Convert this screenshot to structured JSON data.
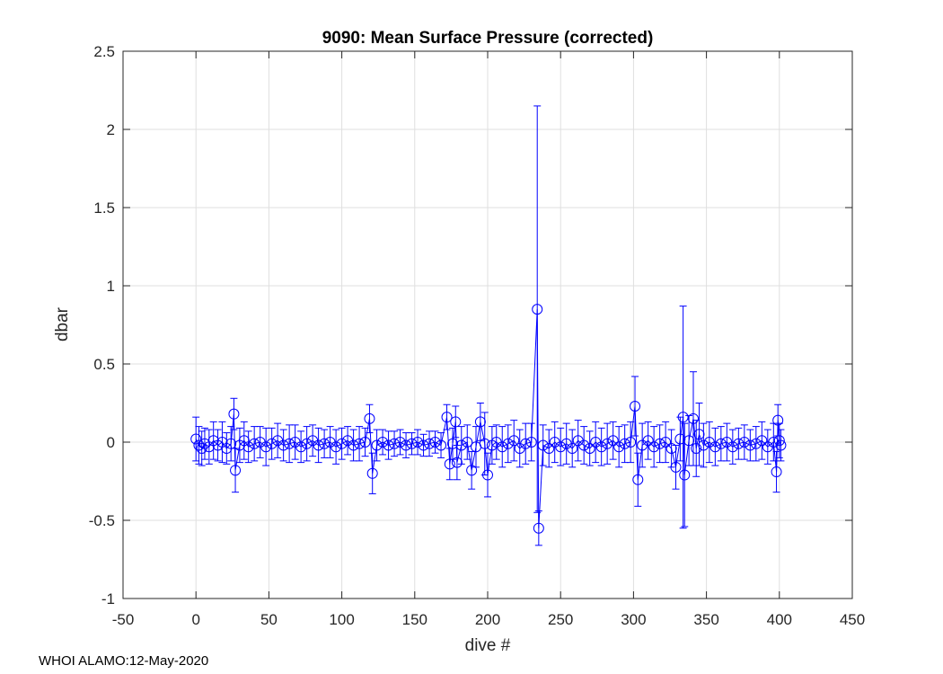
{
  "chart_data": {
    "type": "scatter",
    "title": "9090: Mean Surface Pressure (corrected)",
    "xlabel": "dive #",
    "ylabel": "dbar",
    "xlim": [
      -50,
      450
    ],
    "ylim": [
      -1,
      2.5
    ],
    "xticks": [
      -50,
      0,
      50,
      100,
      150,
      200,
      250,
      300,
      350,
      400,
      450
    ],
    "yticks": [
      -1,
      -0.5,
      0,
      0.5,
      1,
      1.5,
      2,
      2.5
    ],
    "xtick_labels": [
      "-50",
      "0",
      "50",
      "100",
      "150",
      "200",
      "250",
      "300",
      "350",
      "400",
      "450"
    ],
    "ytick_labels": [
      "-1",
      "-0.5",
      "0",
      "0.5",
      "1",
      "1.5",
      "2",
      "2.5"
    ],
    "grid": true,
    "series_color": "#0000ff",
    "marker": "circle",
    "errorbars": true,
    "series": [
      {
        "name": "mean surface pressure",
        "points": [
          {
            "x": 0,
            "y": 0.02,
            "err": 0.14
          },
          {
            "x": 2,
            "y": -0.02,
            "err": 0.12
          },
          {
            "x": 4,
            "y": -0.04,
            "err": 0.11
          },
          {
            "x": 6,
            "y": -0.01,
            "err": 0.1
          },
          {
            "x": 9,
            "y": -0.03,
            "err": 0.11
          },
          {
            "x": 12,
            "y": 0.01,
            "err": 0.12
          },
          {
            "x": 15,
            "y": -0.02,
            "err": 0.1
          },
          {
            "x": 18,
            "y": 0.0,
            "err": 0.13
          },
          {
            "x": 21,
            "y": -0.04,
            "err": 0.1
          },
          {
            "x": 24,
            "y": -0.01,
            "err": 0.11
          },
          {
            "x": 26,
            "y": 0.18,
            "err": 0.1
          },
          {
            "x": 27,
            "y": -0.18,
            "err": 0.14
          },
          {
            "x": 30,
            "y": -0.02,
            "err": 0.11
          },
          {
            "x": 33,
            "y": 0.01,
            "err": 0.12
          },
          {
            "x": 36,
            "y": -0.03,
            "err": 0.1
          },
          {
            "x": 40,
            "y": -0.01,
            "err": 0.11
          },
          {
            "x": 44,
            "y": 0.0,
            "err": 0.1
          },
          {
            "x": 48,
            "y": -0.03,
            "err": 0.12
          },
          {
            "x": 52,
            "y": -0.01,
            "err": 0.1
          },
          {
            "x": 56,
            "y": 0.01,
            "err": 0.11
          },
          {
            "x": 60,
            "y": -0.02,
            "err": 0.1
          },
          {
            "x": 64,
            "y": -0.01,
            "err": 0.12
          },
          {
            "x": 68,
            "y": 0.0,
            "err": 0.11
          },
          {
            "x": 72,
            "y": -0.03,
            "err": 0.1
          },
          {
            "x": 76,
            "y": -0.01,
            "err": 0.11
          },
          {
            "x": 80,
            "y": 0.01,
            "err": 0.1
          },
          {
            "x": 84,
            "y": -0.02,
            "err": 0.11
          },
          {
            "x": 88,
            "y": -0.01,
            "err": 0.09
          },
          {
            "x": 92,
            "y": 0.0,
            "err": 0.1
          },
          {
            "x": 96,
            "y": -0.03,
            "err": 0.11
          },
          {
            "x": 100,
            "y": -0.01,
            "err": 0.1
          },
          {
            "x": 104,
            "y": 0.01,
            "err": 0.09
          },
          {
            "x": 108,
            "y": -0.02,
            "err": 0.1
          },
          {
            "x": 112,
            "y": -0.01,
            "err": 0.11
          },
          {
            "x": 116,
            "y": 0.0,
            "err": 0.09
          },
          {
            "x": 119,
            "y": 0.15,
            "err": 0.09
          },
          {
            "x": 121,
            "y": -0.2,
            "err": 0.13
          },
          {
            "x": 124,
            "y": -0.02,
            "err": 0.1
          },
          {
            "x": 128,
            "y": 0.0,
            "err": 0.08
          },
          {
            "x": 132,
            "y": -0.02,
            "err": 0.09
          },
          {
            "x": 136,
            "y": -0.01,
            "err": 0.08
          },
          {
            "x": 140,
            "y": 0.0,
            "err": 0.08
          },
          {
            "x": 144,
            "y": -0.02,
            "err": 0.08
          },
          {
            "x": 148,
            "y": -0.01,
            "err": 0.07
          },
          {
            "x": 152,
            "y": 0.0,
            "err": 0.08
          },
          {
            "x": 156,
            "y": -0.02,
            "err": 0.07
          },
          {
            "x": 160,
            "y": -0.01,
            "err": 0.08
          },
          {
            "x": 164,
            "y": 0.0,
            "err": 0.07
          },
          {
            "x": 168,
            "y": -0.02,
            "err": 0.08
          },
          {
            "x": 172,
            "y": 0.16,
            "err": 0.08
          },
          {
            "x": 174,
            "y": -0.14,
            "err": 0.1
          },
          {
            "x": 176,
            "y": -0.01,
            "err": 0.1
          },
          {
            "x": 178,
            "y": 0.13,
            "err": 0.1
          },
          {
            "x": 179,
            "y": -0.13,
            "err": 0.11
          },
          {
            "x": 182,
            "y": -0.02,
            "err": 0.12
          },
          {
            "x": 186,
            "y": 0.0,
            "err": 0.11
          },
          {
            "x": 189,
            "y": -0.18,
            "err": 0.12
          },
          {
            "x": 192,
            "y": -0.03,
            "err": 0.13
          },
          {
            "x": 195,
            "y": 0.13,
            "err": 0.12
          },
          {
            "x": 198,
            "y": -0.01,
            "err": 0.2
          },
          {
            "x": 200,
            "y": -0.21,
            "err": 0.14
          },
          {
            "x": 203,
            "y": -0.02,
            "err": 0.12
          },
          {
            "x": 206,
            "y": 0.0,
            "err": 0.11
          },
          {
            "x": 210,
            "y": -0.03,
            "err": 0.13
          },
          {
            "x": 214,
            "y": -0.01,
            "err": 0.12
          },
          {
            "x": 218,
            "y": 0.01,
            "err": 0.13
          },
          {
            "x": 222,
            "y": -0.04,
            "err": 0.12
          },
          {
            "x": 226,
            "y": -0.01,
            "err": 0.13
          },
          {
            "x": 230,
            "y": 0.0,
            "err": 0.12
          },
          {
            "x": 234,
            "y": 0.85,
            "err": 1.3
          },
          {
            "x": 235,
            "y": -0.55,
            "err": 0.11
          },
          {
            "x": 238,
            "y": -0.02,
            "err": 0.13
          },
          {
            "x": 242,
            "y": -0.04,
            "err": 0.12
          },
          {
            "x": 246,
            "y": 0.0,
            "err": 0.13
          },
          {
            "x": 250,
            "y": -0.03,
            "err": 0.12
          },
          {
            "x": 254,
            "y": -0.01,
            "err": 0.13
          },
          {
            "x": 258,
            "y": -0.04,
            "err": 0.12
          },
          {
            "x": 262,
            "y": 0.01,
            "err": 0.13
          },
          {
            "x": 266,
            "y": -0.02,
            "err": 0.12
          },
          {
            "x": 270,
            "y": -0.04,
            "err": 0.11
          },
          {
            "x": 274,
            "y": 0.0,
            "err": 0.13
          },
          {
            "x": 278,
            "y": -0.03,
            "err": 0.12
          },
          {
            "x": 282,
            "y": -0.01,
            "err": 0.13
          },
          {
            "x": 286,
            "y": 0.01,
            "err": 0.12
          },
          {
            "x": 290,
            "y": -0.03,
            "err": 0.13
          },
          {
            "x": 294,
            "y": -0.01,
            "err": 0.12
          },
          {
            "x": 298,
            "y": 0.0,
            "err": 0.13
          },
          {
            "x": 301,
            "y": 0.23,
            "err": 0.19
          },
          {
            "x": 303,
            "y": -0.24,
            "err": 0.17
          },
          {
            "x": 306,
            "y": -0.02,
            "err": 0.14
          },
          {
            "x": 310,
            "y": 0.01,
            "err": 0.12
          },
          {
            "x": 314,
            "y": -0.03,
            "err": 0.13
          },
          {
            "x": 318,
            "y": -0.01,
            "err": 0.12
          },
          {
            "x": 322,
            "y": 0.0,
            "err": 0.13
          },
          {
            "x": 326,
            "y": -0.04,
            "err": 0.12
          },
          {
            "x": 329,
            "y": -0.16,
            "err": 0.14
          },
          {
            "x": 332,
            "y": 0.02,
            "err": 0.14
          },
          {
            "x": 334,
            "y": 0.16,
            "err": 0.71
          },
          {
            "x": 335,
            "y": -0.21,
            "err": 0.33
          },
          {
            "x": 338,
            "y": 0.01,
            "err": 0.16
          },
          {
            "x": 341,
            "y": 0.15,
            "err": 0.3
          },
          {
            "x": 343,
            "y": -0.04,
            "err": 0.18
          },
          {
            "x": 345,
            "y": 0.05,
            "err": 0.2
          },
          {
            "x": 348,
            "y": -0.02,
            "err": 0.14
          },
          {
            "x": 352,
            "y": 0.0,
            "err": 0.13
          },
          {
            "x": 356,
            "y": -0.03,
            "err": 0.12
          },
          {
            "x": 360,
            "y": -0.01,
            "err": 0.11
          },
          {
            "x": 364,
            "y": 0.0,
            "err": 0.12
          },
          {
            "x": 368,
            "y": -0.03,
            "err": 0.11
          },
          {
            "x": 372,
            "y": -0.01,
            "err": 0.1
          },
          {
            "x": 376,
            "y": 0.0,
            "err": 0.11
          },
          {
            "x": 380,
            "y": -0.02,
            "err": 0.1
          },
          {
            "x": 384,
            "y": -0.01,
            "err": 0.11
          },
          {
            "x": 388,
            "y": 0.01,
            "err": 0.12
          },
          {
            "x": 392,
            "y": -0.03,
            "err": 0.11
          },
          {
            "x": 396,
            "y": 0.0,
            "err": 0.12
          },
          {
            "x": 398,
            "y": -0.19,
            "err": 0.13
          },
          {
            "x": 399,
            "y": 0.14,
            "err": 0.1
          },
          {
            "x": 400,
            "y": 0.01,
            "err": 0.11
          },
          {
            "x": 401,
            "y": -0.02,
            "err": 0.1
          }
        ]
      }
    ]
  },
  "footer": {
    "text": "WHOI ALAMO:12-May-2020"
  }
}
